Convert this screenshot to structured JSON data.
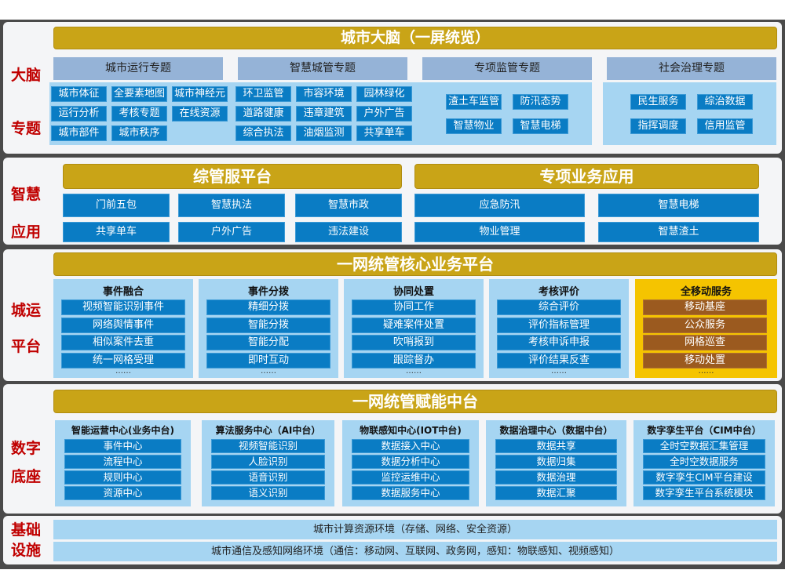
{
  "brain": {
    "side": [
      "大脑",
      "专题"
    ],
    "title": "城市大脑（一屏统览）",
    "groups": [
      {
        "header": "城市运行专题",
        "items": [
          "城市体征",
          "全要素地图",
          "城市神经元",
          "运行分析",
          "考核专题",
          "在线资源",
          "城市部件",
          "城市秩序"
        ]
      },
      {
        "header": "智慧城管专题",
        "items": [
          "环卫监管",
          "市容环境",
          "园林绿化",
          "道路健康",
          "违章建筑",
          "户外广告",
          "综合执法",
          "油烟监测",
          "共享单车"
        ]
      },
      {
        "header": "专项监管专题",
        "items": [
          "渣土车监管",
          "防汛态势",
          "智慧物业",
          "智慧电梯"
        ]
      },
      {
        "header": "社会治理专题",
        "items": [
          "民生服务",
          "综治数据",
          "指挥调度",
          "信用监管"
        ]
      }
    ]
  },
  "apps": {
    "side": [
      "智慧",
      "应用"
    ],
    "left": {
      "title": "综管服平台",
      "items": [
        "门前五包",
        "智慧执法",
        "智慧市政",
        "共享单车",
        "户外广告",
        "违法建设"
      ]
    },
    "right": {
      "title": "专项业务应用",
      "items": [
        "应急防汛",
        "智慧电梯",
        "物业管理",
        "智慧渣土"
      ]
    }
  },
  "platform": {
    "side": [
      "城运",
      "平台"
    ],
    "title": "一网统管核心业务平台",
    "more": "……",
    "columns": [
      {
        "title": "事件融合",
        "items": [
          "视频智能识别事件",
          "网络舆情事件",
          "相似案件去重",
          "统一网格受理"
        ]
      },
      {
        "title": "事件分拨",
        "items": [
          "精细分拨",
          "智能分拨",
          "智能分配",
          "即时互动"
        ]
      },
      {
        "title": "协同处置",
        "items": [
          "协同工作",
          "疑难案件处置",
          "吹哨报到",
          "跟踪督办"
        ]
      },
      {
        "title": "考核评价",
        "items": [
          "综合评价",
          "评价指标管理",
          "考核申诉申报",
          "评价结果反查"
        ]
      },
      {
        "title": "全移动服务",
        "items": [
          "移动基座",
          "公众服务",
          "网格巡查",
          "移动处置"
        ]
      }
    ]
  },
  "base": {
    "side": [
      "数字",
      "底座"
    ],
    "title": "一网统管赋能中台",
    "columns": [
      {
        "title": "智能运营中心(业务中台)",
        "items": [
          "事件中心",
          "流程中心",
          "规则中心",
          "资源中心"
        ]
      },
      {
        "title": "算法服务中心（AI中台）",
        "items": [
          "视频智能识别",
          "人脸识别",
          "语音识别",
          "语义识别"
        ]
      },
      {
        "title": "物联感知中心(IOT中台)",
        "items": [
          "数据接入中心",
          "数据分析中心",
          "监控运维中心",
          "数据服务中心"
        ]
      },
      {
        "title": "数据治理中心（数据中台）",
        "items": [
          "数据共享",
          "数据归集",
          "数据治理",
          "数据汇聚"
        ]
      },
      {
        "title": "数字孪生平台（CIM中台）",
        "items": [
          "全时空数据汇集管理",
          "全时空数据服务",
          "数字孪生CIM平台建设",
          "数字孪生平台系统模块"
        ]
      }
    ]
  },
  "infra": {
    "side": [
      "基础",
      "设施"
    ],
    "rows": [
      "城市计算资源环境（存储、网络、安全资源）",
      "城市通信及感知网络环境（通信：移动网、互联网、政务网，感知：物联感知、视频感知）"
    ]
  },
  "colors": {
    "gold": "#c9a417",
    "blue": "#0a7cc4",
    "panel": "#a6d5f2",
    "header": "#95b3d7",
    "label": "#c00000",
    "mobile_panel": "#f5c400",
    "mobile_item": "#9b5a1f"
  }
}
